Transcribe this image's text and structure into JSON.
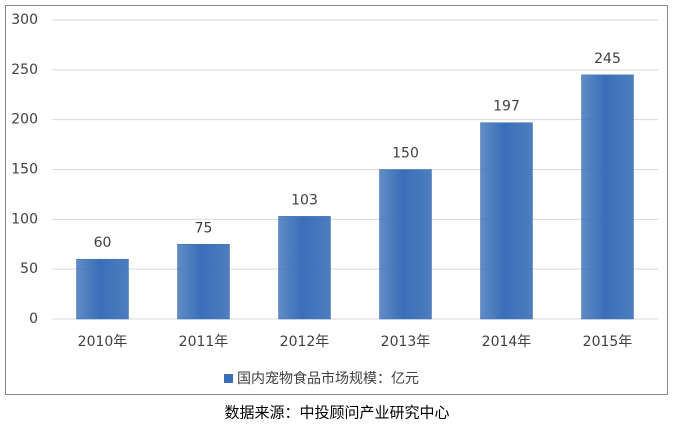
{
  "chart_data": {
    "type": "bar",
    "categories": [
      "2010年",
      "2011年",
      "2012年",
      "2013年",
      "2014年",
      "2015年"
    ],
    "series": [
      {
        "name": "国内宠物食品市场规模：亿元",
        "color": "#3a6fb8",
        "values": [
          60,
          75,
          103,
          150,
          197,
          245
        ]
      }
    ],
    "ylim": [
      0,
      300
    ],
    "yticks": [
      0,
      50,
      100,
      150,
      200,
      250,
      300
    ],
    "grid": true,
    "legend": "bottom",
    "source": "数据来源：中投顾问产业研究中心"
  }
}
